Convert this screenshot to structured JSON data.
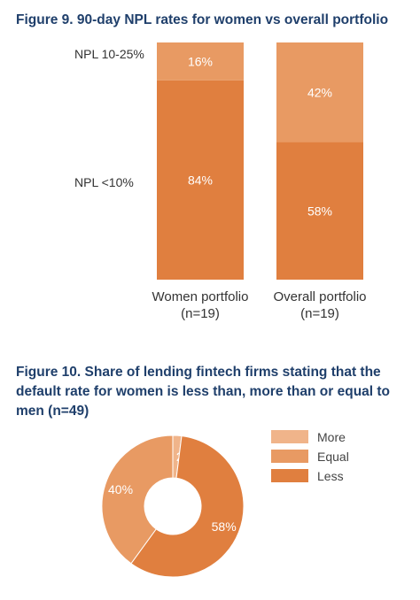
{
  "chart_data": [
    {
      "type": "bar",
      "stacked": true,
      "title": "Figure 9. 90-day NPL rates for women vs overall portfolio",
      "categories": [
        "Women portfolio",
        "Overall portfolio"
      ],
      "category_notes": [
        "(n=19)",
        "(n=19)"
      ],
      "series": [
        {
          "name": "NPL <10%",
          "values": [
            84,
            58
          ],
          "labels": [
            "84%",
            "58%"
          ],
          "color": "#e07f3f"
        },
        {
          "name": "NPL 10-25%",
          "values": [
            16,
            42
          ],
          "labels": [
            "16%",
            "42%"
          ],
          "color": "#e89a63"
        }
      ],
      "ylim": [
        0,
        100
      ],
      "grid": false,
      "legend": "left"
    },
    {
      "type": "pie",
      "donut": true,
      "title": "Figure 10. Share of lending fintech firms stating that the default rate for women is less than, more than or equal to men (n=49)",
      "slices": [
        {
          "name": "More",
          "value": 2,
          "label": "2%",
          "color": "#f0b48a"
        },
        {
          "name": "Less",
          "value": 58,
          "label": "58%",
          "color": "#e07f3f"
        },
        {
          "name": "Equal",
          "value": 40,
          "label": "40%",
          "color": "#e89a63"
        }
      ],
      "legend_order": [
        "More",
        "Equal",
        "Less"
      ],
      "legend": "right"
    }
  ]
}
